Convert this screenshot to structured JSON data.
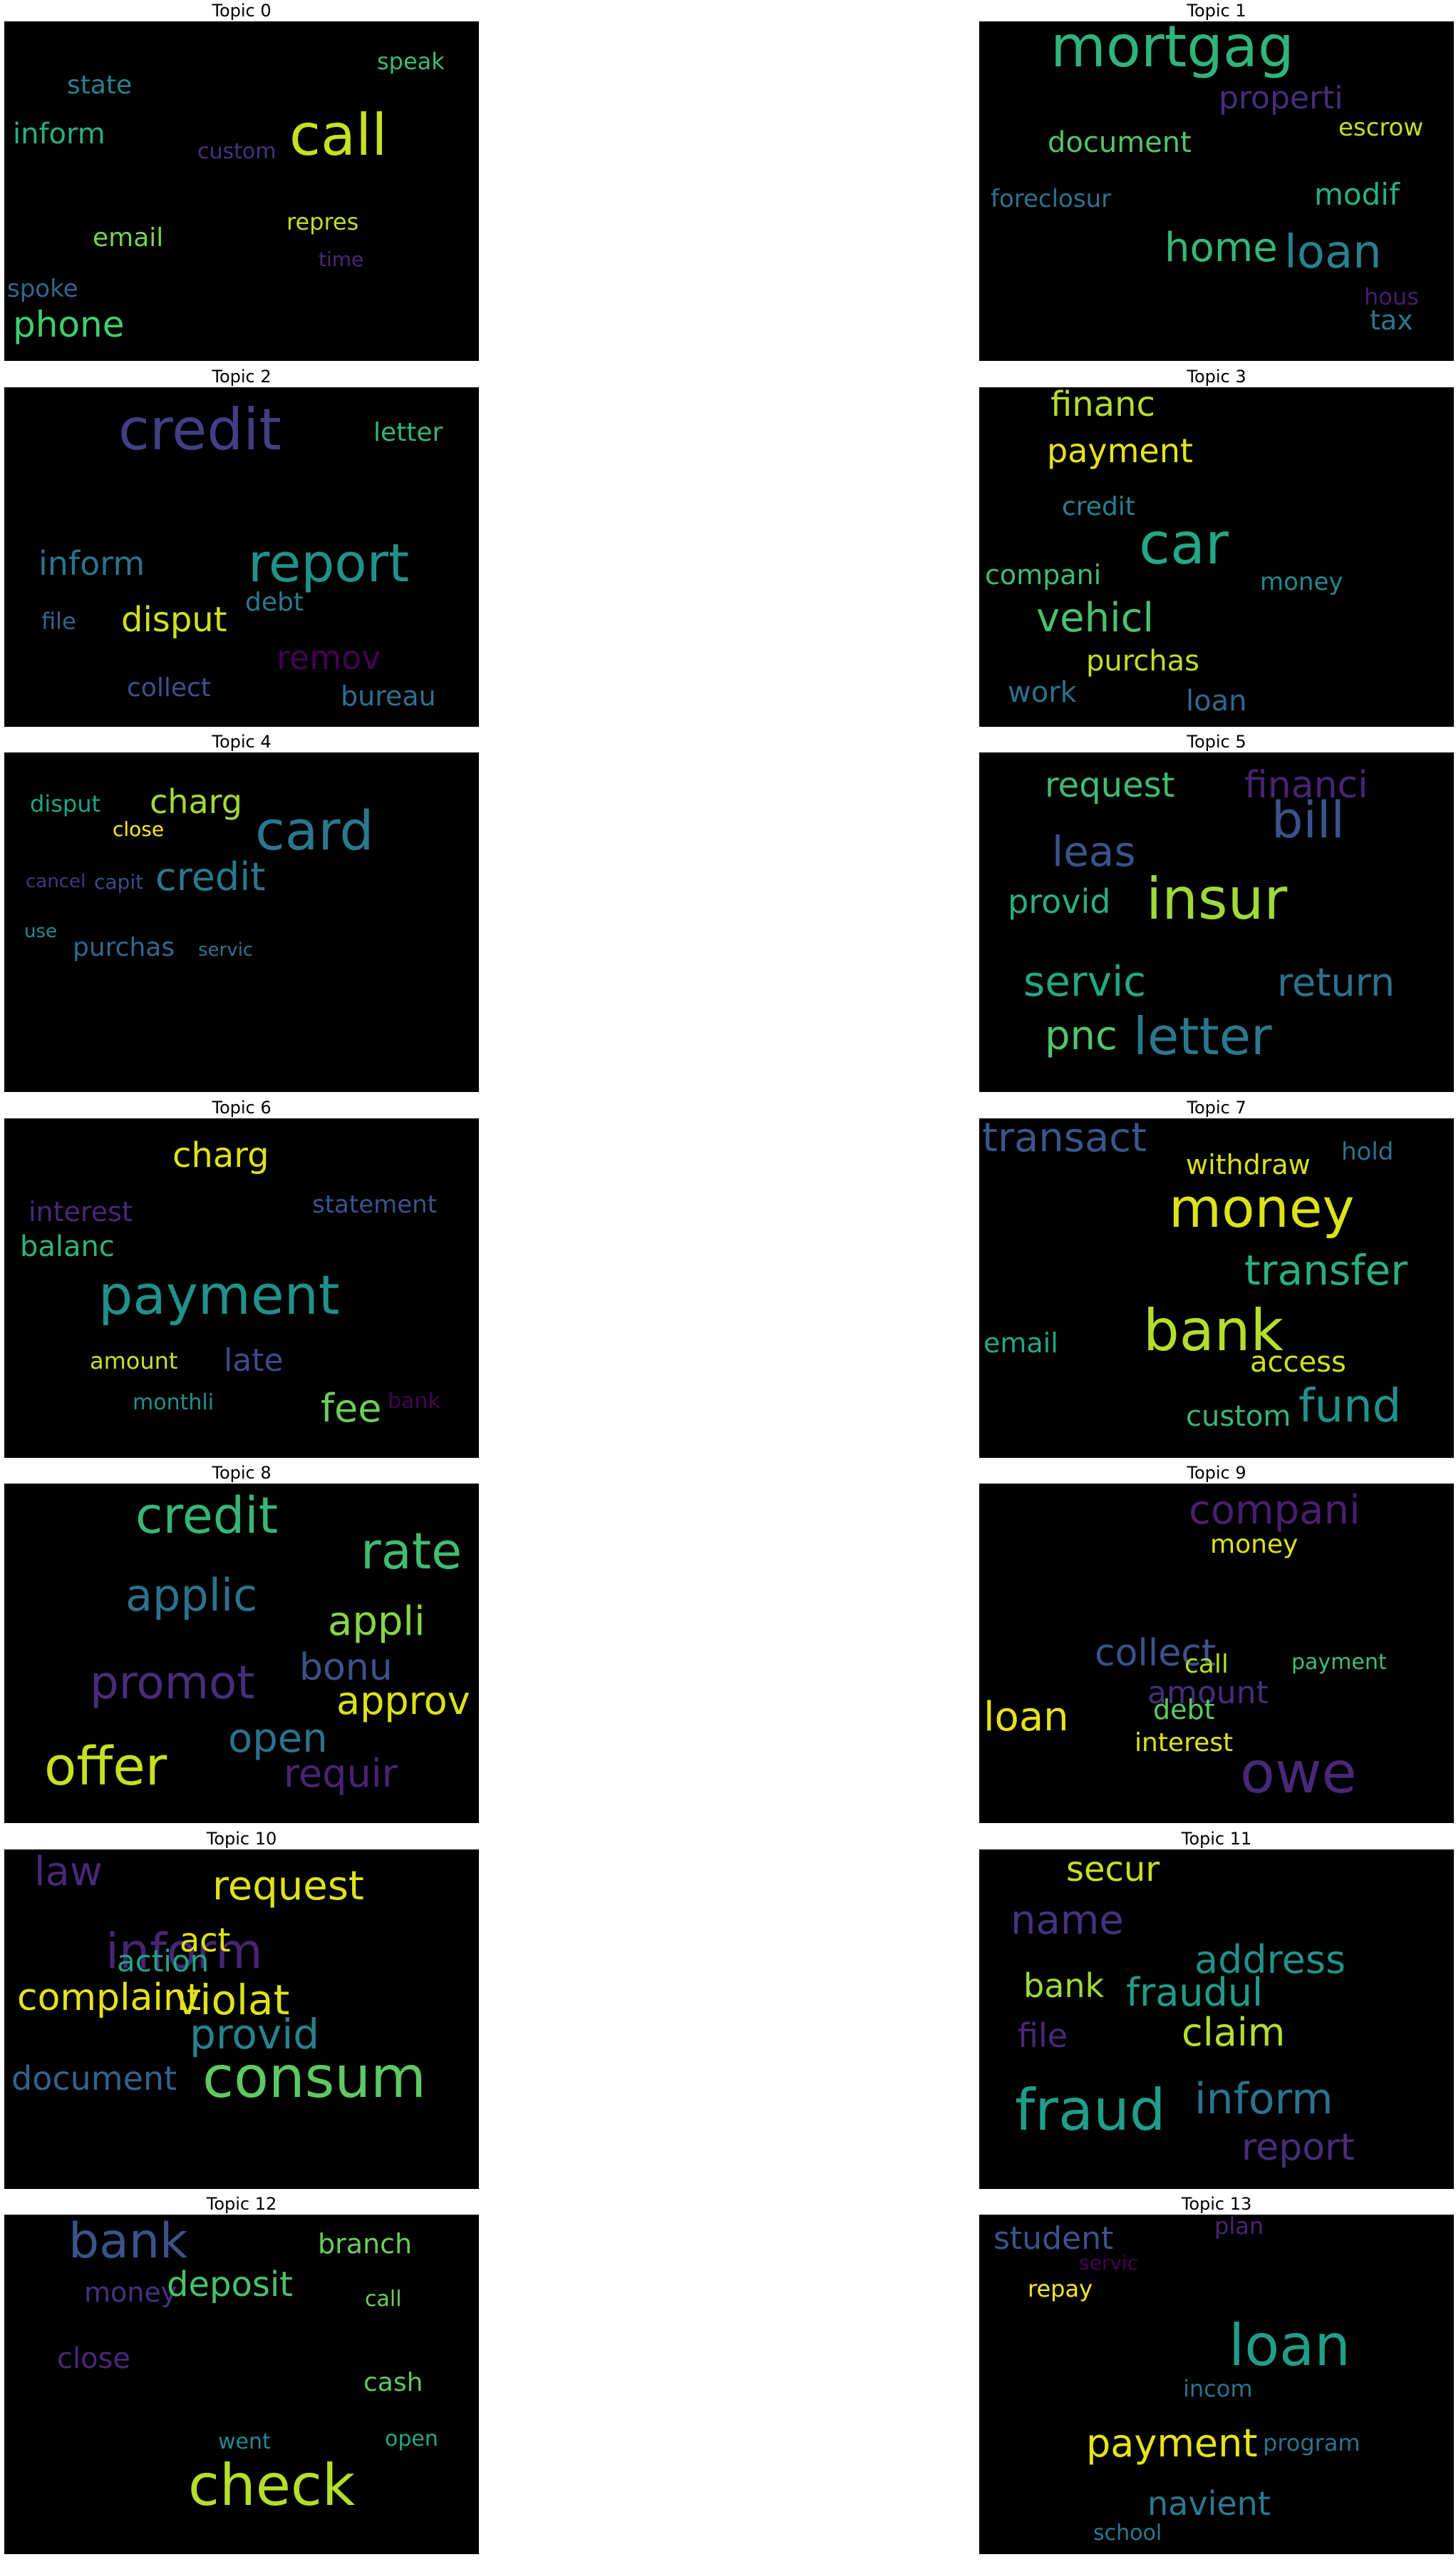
{
  "topics": [
    {
      "title": "Topic 0",
      "words": [
        {
          "text": "call",
          "color": "#c8e020"
        },
        {
          "text": "phone",
          "color": "#3ecf6e"
        },
        {
          "text": "inform",
          "color": "#29af7f"
        },
        {
          "text": "state",
          "color": "#26828e"
        },
        {
          "text": "speak",
          "color": "#3aba76"
        },
        {
          "text": "custom",
          "color": "#46327e"
        },
        {
          "text": "email",
          "color": "#7ad151"
        },
        {
          "text": "repres",
          "color": "#bddf26"
        },
        {
          "text": "spoke",
          "color": "#31688e"
        },
        {
          "text": "time",
          "color": "#482878"
        }
      ]
    },
    {
      "title": "Topic 1",
      "words": [
        {
          "text": "mortgag",
          "color": "#2fb47c"
        },
        {
          "text": "properti",
          "color": "#472d7b"
        },
        {
          "text": "document",
          "color": "#52c569"
        },
        {
          "text": "escrow",
          "color": "#c2df23"
        },
        {
          "text": "foreclosur",
          "color": "#2c728e"
        },
        {
          "text": "modif",
          "color": "#2ab07f"
        },
        {
          "text": "home",
          "color": "#35b779"
        },
        {
          "text": "loan",
          "color": "#26828e"
        },
        {
          "text": "hous",
          "color": "#481b6d"
        },
        {
          "text": "tax",
          "color": "#2a788e"
        }
      ]
    },
    {
      "title": "Topic 2",
      "words": [
        {
          "text": "credit",
          "color": "#433e85"
        },
        {
          "text": "letter",
          "color": "#35b779"
        },
        {
          "text": "inform",
          "color": "#2c728e"
        },
        {
          "text": "report",
          "color": "#21918c"
        },
        {
          "text": "file",
          "color": "#33638d"
        },
        {
          "text": "disput",
          "color": "#d0e11c"
        },
        {
          "text": "debt",
          "color": "#2a788e"
        },
        {
          "text": "remov",
          "color": "#440154"
        },
        {
          "text": "collect",
          "color": "#3b528b"
        },
        {
          "text": "bureau",
          "color": "#2d708e"
        }
      ]
    },
    {
      "title": "Topic 3",
      "words": [
        {
          "text": "financ",
          "color": "#b5de2b"
        },
        {
          "text": "payment",
          "color": "#e5e419"
        },
        {
          "text": "credit",
          "color": "#26828e"
        },
        {
          "text": "car",
          "color": "#22a884"
        },
        {
          "text": "compani",
          "color": "#40bd72"
        },
        {
          "text": "money",
          "color": "#23888e"
        },
        {
          "text": "vehicl",
          "color": "#4ac16d"
        },
        {
          "text": "purchas",
          "color": "#c0df25"
        },
        {
          "text": "work",
          "color": "#2d708e"
        },
        {
          "text": "loan",
          "color": "#31688e"
        }
      ]
    },
    {
      "title": "Topic 4",
      "words": [
        {
          "text": "disput",
          "color": "#20a486"
        },
        {
          "text": "charg",
          "color": "#a2da37"
        },
        {
          "text": "card",
          "color": "#2a788e"
        },
        {
          "text": "close",
          "color": "#fde725"
        },
        {
          "text": "cancel",
          "color": "#453581"
        },
        {
          "text": "capit",
          "color": "#3e4a89"
        },
        {
          "text": "credit",
          "color": "#2a788e"
        },
        {
          "text": "use",
          "color": "#23898e"
        },
        {
          "text": "purchas",
          "color": "#31688e"
        },
        {
          "text": "servic",
          "color": "#2c728e"
        }
      ]
    },
    {
      "title": "Topic 5",
      "words": [
        {
          "text": "request",
          "color": "#3fbc73"
        },
        {
          "text": "financi",
          "color": "#482475"
        },
        {
          "text": "bill",
          "color": "#3b528b"
        },
        {
          "text": "leas",
          "color": "#3b528b"
        },
        {
          "text": "provid",
          "color": "#29af7f"
        },
        {
          "text": "insur",
          "color": "#a0da39"
        },
        {
          "text": "servic",
          "color": "#22a884"
        },
        {
          "text": "return",
          "color": "#2c728e"
        },
        {
          "text": "pnc",
          "color": "#52c569"
        },
        {
          "text": "letter",
          "color": "#2a788e"
        }
      ]
    },
    {
      "title": "Topic 6",
      "words": [
        {
          "text": "charg",
          "color": "#dde318"
        },
        {
          "text": "interest",
          "color": "#482878"
        },
        {
          "text": "statement",
          "color": "#3b528b"
        },
        {
          "text": "balanc",
          "color": "#2eb37c"
        },
        {
          "text": "payment",
          "color": "#21918c"
        },
        {
          "text": "amount",
          "color": "#c8e020"
        },
        {
          "text": "late",
          "color": "#3e4a89"
        },
        {
          "text": "monthli",
          "color": "#21918c"
        },
        {
          "text": "fee",
          "color": "#6ccd5a"
        },
        {
          "text": "bank",
          "color": "#440154"
        }
      ]
    },
    {
      "title": "Topic 7",
      "words": [
        {
          "text": "transact",
          "color": "#39568c"
        },
        {
          "text": "withdraw",
          "color": "#d8e219"
        },
        {
          "text": "hold",
          "color": "#2d708e"
        },
        {
          "text": "money",
          "color": "#dde318"
        },
        {
          "text": "transfer",
          "color": "#2ab07f"
        },
        {
          "text": "email",
          "color": "#22a884"
        },
        {
          "text": "bank",
          "color": "#b5de2b"
        },
        {
          "text": "access",
          "color": "#d0e11c"
        },
        {
          "text": "custom",
          "color": "#35b779"
        },
        {
          "text": "fund",
          "color": "#21918c"
        }
      ]
    },
    {
      "title": "Topic 8",
      "words": [
        {
          "text": "credit",
          "color": "#35b779"
        },
        {
          "text": "rate",
          "color": "#40bd72"
        },
        {
          "text": "applic",
          "color": "#2c728e"
        },
        {
          "text": "appli",
          "color": "#86d549"
        },
        {
          "text": "promot",
          "color": "#472d7b"
        },
        {
          "text": "bonu",
          "color": "#3b528b"
        },
        {
          "text": "approv",
          "color": "#d8e219"
        },
        {
          "text": "open",
          "color": "#2c728e"
        },
        {
          "text": "offer",
          "color": "#c8e020"
        },
        {
          "text": "requir",
          "color": "#482475"
        }
      ]
    },
    {
      "title": "Topic 9",
      "words": [
        {
          "text": "compani",
          "color": "#481f70"
        },
        {
          "text": "money",
          "color": "#dde318"
        },
        {
          "text": "collect",
          "color": "#3b528b"
        },
        {
          "text": "call",
          "color": "#b5de2b"
        },
        {
          "text": "payment",
          "color": "#3fbc73"
        },
        {
          "text": "amount",
          "color": "#472d7b"
        },
        {
          "text": "debt",
          "color": "#5ec962"
        },
        {
          "text": "interest",
          "color": "#dde318"
        },
        {
          "text": "loan",
          "color": "#e5e419"
        },
        {
          "text": "owe",
          "color": "#482878"
        }
      ]
    },
    {
      "title": "Topic 10",
      "words": [
        {
          "text": "law",
          "color": "#482878"
        },
        {
          "text": "request",
          "color": "#dde318"
        },
        {
          "text": "inform",
          "color": "#482475"
        },
        {
          "text": "act",
          "color": "#dde318"
        },
        {
          "text": "action",
          "color": "#20a486"
        },
        {
          "text": "complaint",
          "color": "#e5e419"
        },
        {
          "text": "violat",
          "color": "#dde318"
        },
        {
          "text": "provid",
          "color": "#26828e"
        },
        {
          "text": "document",
          "color": "#33638d"
        },
        {
          "text": "consum",
          "color": "#5ec962"
        }
      ]
    },
    {
      "title": "Topic 11",
      "words": [
        {
          "text": "secur",
          "color": "#c8e020"
        },
        {
          "text": "name",
          "color": "#46327e"
        },
        {
          "text": "bank",
          "color": "#a0da39"
        },
        {
          "text": "address",
          "color": "#21918c"
        },
        {
          "text": "fraudul",
          "color": "#1f9e89"
        },
        {
          "text": "file",
          "color": "#482878"
        },
        {
          "text": "claim",
          "color": "#b5de2b"
        },
        {
          "text": "fraud",
          "color": "#1f9e89"
        },
        {
          "text": "inform",
          "color": "#2c728e"
        },
        {
          "text": "report",
          "color": "#472d7b"
        }
      ]
    },
    {
      "title": "Topic 12",
      "words": [
        {
          "text": "bank",
          "color": "#3b528b"
        },
        {
          "text": "branch",
          "color": "#6ccd5a"
        },
        {
          "text": "money",
          "color": "#46327e"
        },
        {
          "text": "deposit",
          "color": "#4ac16d"
        },
        {
          "text": "call",
          "color": "#6ccd5a"
        },
        {
          "text": "close",
          "color": "#482878"
        },
        {
          "text": "cash",
          "color": "#5ec962"
        },
        {
          "text": "open",
          "color": "#22a884"
        },
        {
          "text": "went",
          "color": "#23898e"
        },
        {
          "text": "check",
          "color": "#b5de2b"
        }
      ]
    },
    {
      "title": "Topic 13",
      "words": [
        {
          "text": "student",
          "color": "#3b528b"
        },
        {
          "text": "plan",
          "color": "#482475"
        },
        {
          "text": "servic",
          "color": "#440154"
        },
        {
          "text": "repay",
          "color": "#fde725"
        },
        {
          "text": "loan",
          "color": "#1f9e89"
        },
        {
          "text": "incom",
          "color": "#2c728e"
        },
        {
          "text": "payment",
          "color": "#e5e419"
        },
        {
          "text": "program",
          "color": "#2c728e"
        },
        {
          "text": "navient",
          "color": "#2a788e"
        },
        {
          "text": "school",
          "color": "#2a788e"
        }
      ]
    }
  ]
}
